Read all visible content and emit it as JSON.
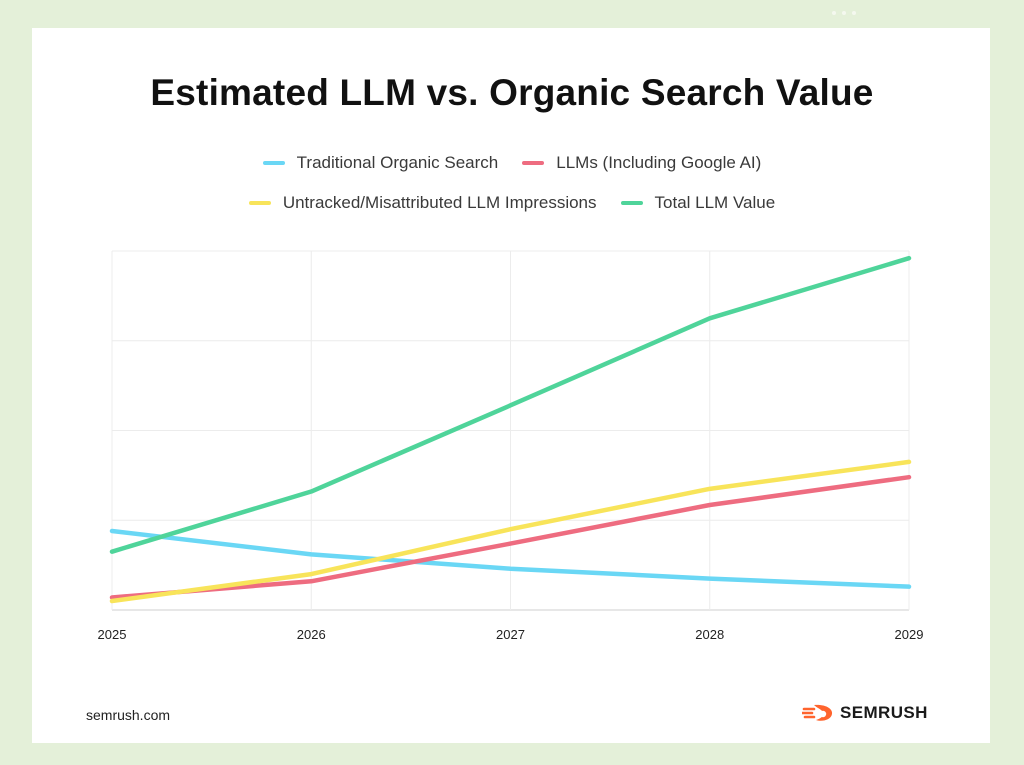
{
  "colors": {
    "traditional": "#6ad7f5",
    "llms": "#ee6c80",
    "untracked": "#f8e45a",
    "total": "#4fd49a",
    "logo_orange": "#ff642d"
  },
  "chart_data": {
    "type": "line",
    "title": "Estimated LLM vs. Organic Search Value",
    "xlabel": "",
    "ylabel": "",
    "x": [
      "2025",
      "2026",
      "2027",
      "2028",
      "2029"
    ],
    "ylim": [
      0,
      4
    ],
    "grid": true,
    "legend_position": "top-center",
    "series": [
      {
        "name": "Traditional Organic Search",
        "color_key": "traditional",
        "values": [
          0.88,
          0.62,
          0.46,
          0.35,
          0.26
        ]
      },
      {
        "name": "LLMs (Including Google AI)",
        "color_key": "llms",
        "values": [
          0.14,
          0.32,
          0.74,
          1.17,
          1.48
        ]
      },
      {
        "name": "Untracked/Misattributed LLM Impressions",
        "color_key": "untracked",
        "values": [
          0.1,
          0.4,
          0.9,
          1.35,
          1.65
        ]
      },
      {
        "name": "Total LLM Value",
        "color_key": "total",
        "values": [
          0.65,
          1.32,
          2.28,
          3.25,
          3.92
        ]
      }
    ]
  },
  "footer": {
    "site": "semrush.com",
    "brand": "SEMRUSH"
  }
}
